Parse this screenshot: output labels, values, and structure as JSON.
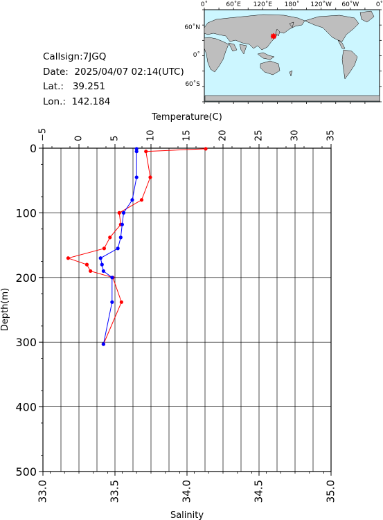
{
  "info": {
    "callsign": "Callsign:7JGQ",
    "date_label": "Date:",
    "date_value": "2025/04/07 02:14(UTC)",
    "lat_label": "Lat.:",
    "lat_value": "39.251",
    "lon_label": "Lon.:",
    "lon_value": "142.184"
  },
  "map": {
    "lon_labels": [
      "0˚",
      "60˚E",
      "120˚E",
      "180˚",
      "120˚W",
      "60˚W",
      "0˚"
    ],
    "lat_labels": [
      "60˚N",
      "0˚",
      "60˚S"
    ],
    "ocean_color": "#ccf6ff",
    "land_color": "#bebebe",
    "station_color": "#ff0000",
    "station": {
      "lon": 142.184,
      "lat": 39.251
    }
  },
  "chart_data": {
    "type": "line",
    "title": "",
    "ylabel": "Depth(m)",
    "top_axis_label": "Temperature(C)",
    "bottom_axis_label": "Salinity",
    "ylim": [
      0,
      500
    ],
    "y_ticks": [
      "0",
      "100",
      "200",
      "300",
      "400",
      "500"
    ],
    "temperature_lim": [
      -5,
      35
    ],
    "temperature_ticks": [
      "−5",
      "0",
      "5",
      "10",
      "15",
      "20",
      "25",
      "30",
      "35"
    ],
    "salinity_lim": [
      33.0,
      35.0
    ],
    "salinity_ticks": [
      "33.0",
      "33.5",
      "34.0",
      "34.5",
      "35.0"
    ],
    "grid": true,
    "series": [
      {
        "quantity": "temperature",
        "color": "#ff0000",
        "points": [
          {
            "depth": 1,
            "value": 17.6
          },
          {
            "depth": 5,
            "value": 9.3
          },
          {
            "depth": 45,
            "value": 9.9
          },
          {
            "depth": 80,
            "value": 8.7
          },
          {
            "depth": 100,
            "value": 5.6
          },
          {
            "depth": 118,
            "value": 5.8
          },
          {
            "depth": 138,
            "value": 4.3
          },
          {
            "depth": 155,
            "value": 3.5
          },
          {
            "depth": 170,
            "value": -1.5
          },
          {
            "depth": 180,
            "value": 1.1
          },
          {
            "depth": 190,
            "value": 1.6
          },
          {
            "depth": 200,
            "value": 4.7
          },
          {
            "depth": 238,
            "value": 5.9
          },
          {
            "depth": 303,
            "value": 3.4
          }
        ]
      },
      {
        "quantity": "salinity",
        "color": "#0000ff",
        "points": [
          {
            "depth": 1,
            "value": 33.65
          },
          {
            "depth": 5,
            "value": 33.65
          },
          {
            "depth": 45,
            "value": 33.65
          },
          {
            "depth": 80,
            "value": 33.62
          },
          {
            "depth": 100,
            "value": 33.56
          },
          {
            "depth": 118,
            "value": 33.55
          },
          {
            "depth": 138,
            "value": 33.54
          },
          {
            "depth": 155,
            "value": 33.52
          },
          {
            "depth": 170,
            "value": 33.4
          },
          {
            "depth": 180,
            "value": 33.41
          },
          {
            "depth": 190,
            "value": 33.42
          },
          {
            "depth": 200,
            "value": 33.48
          },
          {
            "depth": 238,
            "value": 33.48
          },
          {
            "depth": 303,
            "value": 33.42
          }
        ]
      }
    ]
  }
}
